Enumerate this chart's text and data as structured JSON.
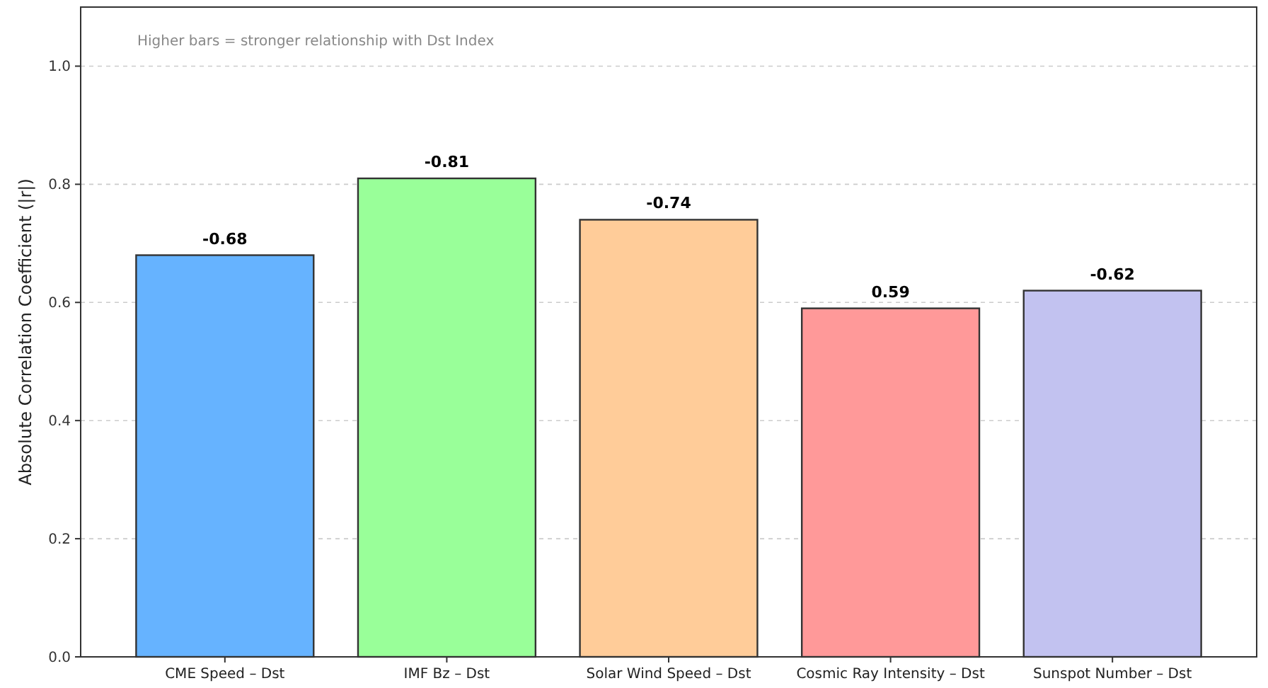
{
  "chart_data": {
    "type": "bar",
    "ylabel": "Absolute Correlation Coefficient (|r|)",
    "annotations": [
      "Higher bars = stronger relationship with Dst Index",
      {
        "text": "-0.68",
        "x": "CME Speed – Dst",
        "y": 0.68
      },
      {
        "text": "-0.81",
        "x": "IMF Bz – Dst",
        "y": 0.81
      },
      {
        "text": "-0.74",
        "x": "Solar Wind Speed – Dst",
        "y": 0.74
      },
      {
        "text": "0.59",
        "x": "Cosmic Ray Intensity – Dst",
        "y": 0.59
      },
      {
        "text": "-0.62",
        "x": "Sunspot Number – Dst",
        "y": 0.62
      }
    ],
    "categories": [
      "CME Speed – Dst",
      "IMF Bz – Dst",
      "Solar Wind Speed – Dst",
      "Cosmic Ray Intensity – Dst",
      "Sunspot Number – Dst"
    ],
    "values": [
      0.68,
      0.81,
      0.74,
      0.59,
      0.62
    ],
    "colors": [
      "#66b3ff",
      "#99ff99",
      "#ffcc99",
      "#ff9999",
      "#c2c2f0"
    ],
    "ylim": [
      0,
      1.1
    ],
    "yticks": [
      {
        "value": 0,
        "label": "0.0"
      },
      {
        "value": 0.2,
        "label": "0.2"
      },
      {
        "value": 0.4,
        "label": "0.4"
      },
      {
        "value": 0.6,
        "label": "0.6"
      },
      {
        "value": 0.8,
        "label": "0.8"
      },
      {
        "value": 1,
        "label": "1.0"
      }
    ],
    "grid": "y"
  }
}
